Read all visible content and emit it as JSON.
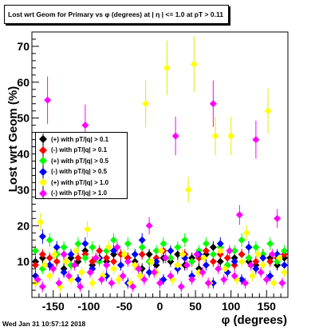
{
  "title": "Lost wrt Geom for Primary vs φ (degrees) at | η | <= 1.0 at pT > 0.11",
  "footer": "Wed Jan 31 10:57:12 2018",
  "chart_data": {
    "type": "scatter",
    "xlabel": "φ (degrees)",
    "ylabel": "Lost wrt Geom (%)",
    "xlim": [
      -180,
      180
    ],
    "ylim": [
      0,
      74
    ],
    "xticks": [
      -150,
      -100,
      -50,
      0,
      50,
      100,
      150
    ],
    "yticks": [
      0,
      10,
      20,
      30,
      40,
      50,
      60,
      70
    ],
    "grid": false,
    "legend_position": "middle-left",
    "series": [
      {
        "name": "(+) with pT/|q| > 0.1",
        "color": "#000000",
        "points": [
          [
            -175,
            10
          ],
          [
            -165,
            11
          ],
          [
            -155,
            9
          ],
          [
            -145,
            12
          ],
          [
            -135,
            8
          ],
          [
            -125,
            11
          ],
          [
            -115,
            10
          ],
          [
            -105,
            13
          ],
          [
            -95,
            9
          ],
          [
            -85,
            11
          ],
          [
            -75,
            10
          ],
          [
            -65,
            12
          ],
          [
            -55,
            9
          ],
          [
            -45,
            11
          ],
          [
            -35,
            10
          ],
          [
            -25,
            8
          ],
          [
            -15,
            12
          ],
          [
            -5,
            9
          ],
          [
            5,
            11
          ],
          [
            15,
            10
          ],
          [
            25,
            12
          ],
          [
            35,
            9
          ],
          [
            45,
            11
          ],
          [
            55,
            8
          ],
          [
            65,
            12
          ],
          [
            75,
            14
          ],
          [
            85,
            10
          ],
          [
            95,
            9
          ],
          [
            105,
            11
          ],
          [
            115,
            12
          ],
          [
            125,
            10
          ],
          [
            135,
            9
          ],
          [
            145,
            12
          ],
          [
            155,
            11
          ],
          [
            165,
            9
          ],
          [
            175,
            11
          ]
        ]
      },
      {
        "name": "(-) with pT/|q| > 0.1",
        "color": "#ff0000",
        "points": [
          [
            -175,
            9
          ],
          [
            -165,
            12
          ],
          [
            -155,
            11
          ],
          [
            -145,
            10
          ],
          [
            -135,
            12
          ],
          [
            -125,
            9
          ],
          [
            -115,
            11
          ],
          [
            -105,
            12
          ],
          [
            -95,
            10
          ],
          [
            -85,
            13
          ],
          [
            -75,
            11
          ],
          [
            -65,
            10
          ],
          [
            -55,
            12
          ],
          [
            -45,
            11
          ],
          [
            -35,
            9
          ],
          [
            -25,
            12
          ],
          [
            -15,
            10
          ],
          [
            -5,
            11
          ],
          [
            5,
            13
          ],
          [
            15,
            11
          ],
          [
            25,
            9
          ],
          [
            35,
            12
          ],
          [
            45,
            10
          ],
          [
            55,
            11
          ],
          [
            65,
            13
          ],
          [
            75,
            10
          ],
          [
            85,
            12
          ],
          [
            95,
            11
          ],
          [
            105,
            9
          ],
          [
            115,
            12
          ],
          [
            125,
            11
          ],
          [
            135,
            10
          ],
          [
            145,
            12
          ],
          [
            155,
            10
          ],
          [
            165,
            11
          ],
          [
            175,
            12
          ]
        ]
      },
      {
        "name": "(+) with pT/|q| > 0.5",
        "color": "#00ff00",
        "points": [
          [
            -175,
            13
          ],
          [
            -165,
            8
          ],
          [
            -155,
            16
          ],
          [
            -145,
            12
          ],
          [
            -135,
            14
          ],
          [
            -125,
            9
          ],
          [
            -115,
            15
          ],
          [
            -105,
            11
          ],
          [
            -95,
            14
          ],
          [
            -85,
            10
          ],
          [
            -75,
            13
          ],
          [
            -65,
            16
          ],
          [
            -55,
            9
          ],
          [
            -45,
            15
          ],
          [
            -35,
            12
          ],
          [
            -25,
            14
          ],
          [
            -15,
            10
          ],
          [
            -5,
            13
          ],
          [
            5,
            15
          ],
          [
            15,
            11
          ],
          [
            25,
            14
          ],
          [
            35,
            16
          ],
          [
            45,
            10
          ],
          [
            55,
            13
          ],
          [
            65,
            15
          ],
          [
            75,
            12
          ],
          [
            85,
            14
          ],
          [
            95,
            9
          ],
          [
            105,
            13
          ],
          [
            115,
            16
          ],
          [
            125,
            11
          ],
          [
            135,
            14
          ],
          [
            145,
            12
          ],
          [
            155,
            15
          ],
          [
            165,
            10
          ],
          [
            175,
            13
          ]
        ]
      },
      {
        "name": "(-) with pT/|q| > 0.5",
        "color": "#0000ff",
        "points": [
          [
            -175,
            6
          ],
          [
            -165,
            17
          ],
          [
            -155,
            9
          ],
          [
            -145,
            14
          ],
          [
            -135,
            7
          ],
          [
            -125,
            12
          ],
          [
            -115,
            5
          ],
          [
            -105,
            15
          ],
          [
            -95,
            8
          ],
          [
            -85,
            11
          ],
          [
            -75,
            6
          ],
          [
            -65,
            13
          ],
          [
            -55,
            9
          ],
          [
            -45,
            4
          ],
          [
            -35,
            12
          ],
          [
            -25,
            16
          ],
          [
            -15,
            7
          ],
          [
            -5,
            10
          ],
          [
            5,
            5
          ],
          [
            15,
            13
          ],
          [
            25,
            8
          ],
          [
            35,
            11
          ],
          [
            45,
            6
          ],
          [
            55,
            12
          ],
          [
            65,
            9
          ],
          [
            75,
            4
          ],
          [
            85,
            15
          ],
          [
            95,
            7
          ],
          [
            105,
            10
          ],
          [
            115,
            5
          ],
          [
            125,
            14
          ],
          [
            135,
            8
          ],
          [
            145,
            11
          ],
          [
            155,
            6
          ],
          [
            165,
            12
          ],
          [
            175,
            9
          ]
        ]
      },
      {
        "name": "(+) with pT/|q| > 1.0",
        "color": "#ffff00",
        "points": [
          [
            -175,
            4
          ],
          [
            -168,
            21
          ],
          [
            -162,
            9
          ],
          [
            -155,
            6
          ],
          [
            -148,
            12
          ],
          [
            -140,
            3
          ],
          [
            -132,
            10
          ],
          [
            -125,
            5
          ],
          [
            -118,
            13
          ],
          [
            -110,
            7
          ],
          [
            -102,
            19
          ],
          [
            -95,
            4
          ],
          [
            -88,
            11
          ],
          [
            -80,
            6
          ],
          [
            -72,
            14
          ],
          [
            -65,
            8
          ],
          [
            -58,
            5
          ],
          [
            -50,
            12
          ],
          [
            -42,
            4
          ],
          [
            -35,
            9
          ],
          [
            -28,
            6
          ],
          [
            -20,
            54
          ],
          [
            -12,
            10
          ],
          [
            -5,
            7
          ],
          [
            2,
            13
          ],
          [
            10,
            64
          ],
          [
            18,
            5
          ],
          [
            25,
            9
          ],
          [
            32,
            12
          ],
          [
            40,
            30
          ],
          [
            48,
            65
          ],
          [
            55,
            7
          ],
          [
            62,
            11
          ],
          [
            70,
            4
          ],
          [
            78,
            45
          ],
          [
            85,
            13
          ],
          [
            92,
            8
          ],
          [
            100,
            45
          ],
          [
            108,
            5
          ],
          [
            115,
            10
          ],
          [
            122,
            18
          ],
          [
            130,
            6
          ],
          [
            138,
            12
          ],
          [
            145,
            9
          ],
          [
            152,
            52
          ],
          [
            160,
            4
          ],
          [
            168,
            11
          ],
          [
            175,
            7
          ]
        ]
      },
      {
        "name": "(-) with pT/|q| > 1.0",
        "color": "#ff00ff",
        "points": [
          [
            -172,
            5
          ],
          [
            -165,
            3
          ],
          [
            -158,
            55
          ],
          [
            -150,
            8
          ],
          [
            -142,
            4
          ],
          [
            -135,
            12
          ],
          [
            -128,
            6
          ],
          [
            -120,
            9
          ],
          [
            -112,
            3
          ],
          [
            -105,
            48
          ],
          [
            -98,
            7
          ],
          [
            -90,
            11
          ],
          [
            -82,
            5
          ],
          [
            -75,
            9
          ],
          [
            -68,
            4
          ],
          [
            -60,
            14
          ],
          [
            -52,
            6
          ],
          [
            -45,
            10
          ],
          [
            -38,
            3
          ],
          [
            -30,
            8
          ],
          [
            -22,
            5
          ],
          [
            -15,
            20
          ],
          [
            -8,
            7
          ],
          [
            0,
            4
          ],
          [
            8,
            11
          ],
          [
            15,
            6
          ],
          [
            22,
            45
          ],
          [
            30,
            3
          ],
          [
            38,
            9
          ],
          [
            45,
            5
          ],
          [
            52,
            12
          ],
          [
            60,
            7
          ],
          [
            68,
            4
          ],
          [
            75,
            54
          ],
          [
            82,
            8
          ],
          [
            90,
            5
          ],
          [
            98,
            13
          ],
          [
            105,
            6
          ],
          [
            112,
            23
          ],
          [
            120,
            4
          ],
          [
            128,
            9
          ],
          [
            135,
            44
          ],
          [
            142,
            7
          ],
          [
            150,
            5
          ],
          [
            158,
            12
          ],
          [
            165,
            22
          ],
          [
            172,
            4
          ]
        ]
      }
    ]
  }
}
